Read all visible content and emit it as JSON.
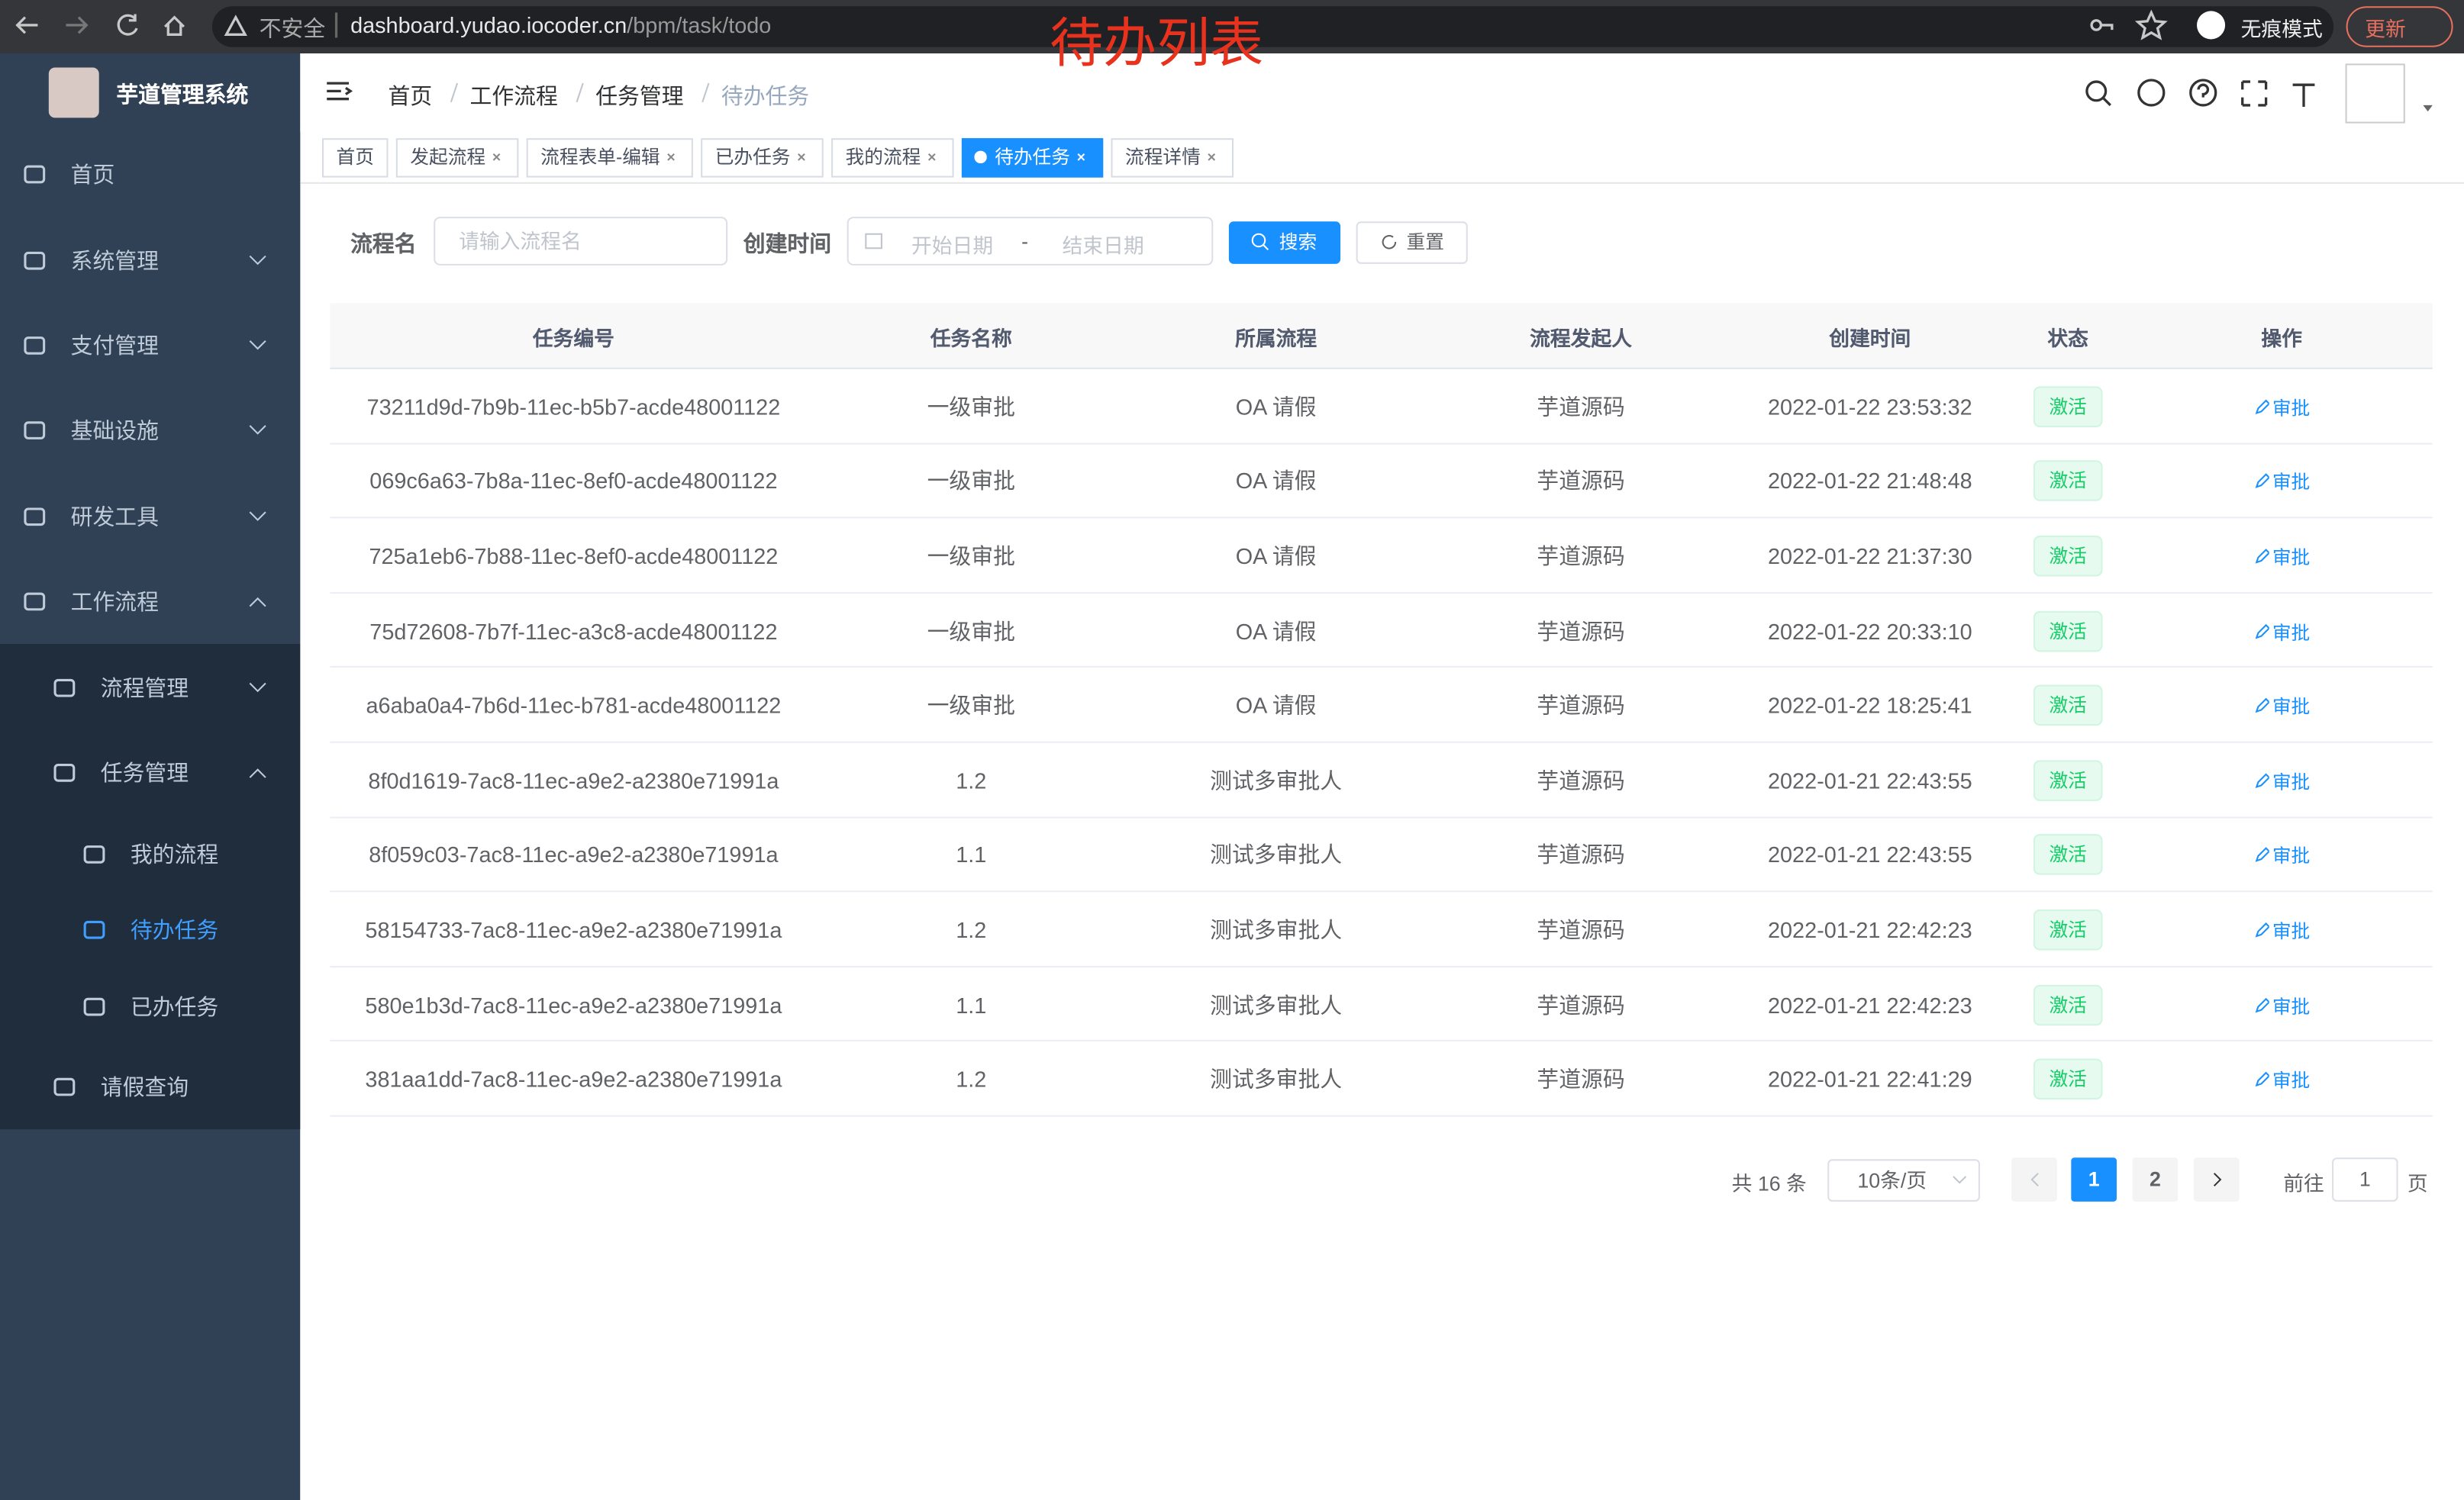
{
  "browser": {
    "security": "不安全",
    "url_host": "dashboard.yudao.iocoder.cn",
    "url_path": "/bpm/task/todo",
    "incognito": "无痕模式",
    "update": "更新"
  },
  "annotation": "待办列表",
  "sidebar": {
    "title": "芋道管理系统",
    "menu": [
      {
        "label": "首页"
      },
      {
        "label": "系统管理"
      },
      {
        "label": "支付管理"
      },
      {
        "label": "基础设施"
      },
      {
        "label": "研发工具"
      },
      {
        "label": "工作流程",
        "children": [
          {
            "label": "流程管理"
          },
          {
            "label": "任务管理",
            "children": [
              {
                "label": "我的流程"
              },
              {
                "label": "待办任务",
                "active": true
              },
              {
                "label": "已办任务"
              }
            ]
          },
          {
            "label": "请假查询"
          }
        ]
      }
    ]
  },
  "breadcrumb": [
    "首页",
    "工作流程",
    "任务管理",
    "待办任务"
  ],
  "tags": [
    {
      "label": "首页"
    },
    {
      "label": "发起流程"
    },
    {
      "label": "流程表单-编辑"
    },
    {
      "label": "已办任务"
    },
    {
      "label": "我的流程"
    },
    {
      "label": "待办任务",
      "active": true
    },
    {
      "label": "流程详情"
    }
  ],
  "search": {
    "name_label": "流程名",
    "name_placeholder": "请输入流程名",
    "time_label": "创建时间",
    "start_placeholder": "开始日期",
    "separator": "-",
    "end_placeholder": "结束日期",
    "search_button": "搜索",
    "reset_button": "重置"
  },
  "table": {
    "columns": [
      "任务编号",
      "任务名称",
      "所属流程",
      "流程发起人",
      "创建时间",
      "状态",
      "操作"
    ],
    "rows": [
      [
        "73211d9d-7b9b-11ec-b5b7-acde48001122",
        "一级审批",
        "OA 请假",
        "芋道源码",
        "2022-01-22 23:53:32",
        "激活",
        "审批"
      ],
      [
        "069c6a63-7b8a-11ec-8ef0-acde48001122",
        "一级审批",
        "OA 请假",
        "芋道源码",
        "2022-01-22 21:48:48",
        "激活",
        "审批"
      ],
      [
        "725a1eb6-7b88-11ec-8ef0-acde48001122",
        "一级审批",
        "OA 请假",
        "芋道源码",
        "2022-01-22 21:37:30",
        "激活",
        "审批"
      ],
      [
        "75d72608-7b7f-11ec-a3c8-acde48001122",
        "一级审批",
        "OA 请假",
        "芋道源码",
        "2022-01-22 20:33:10",
        "激活",
        "审批"
      ],
      [
        "a6aba0a4-7b6d-11ec-b781-acde48001122",
        "一级审批",
        "OA 请假",
        "芋道源码",
        "2022-01-22 18:25:41",
        "激活",
        "审批"
      ],
      [
        "8f0d1619-7ac8-11ec-a9e2-a2380e71991a",
        "1.2",
        "测试多审批人",
        "芋道源码",
        "2022-01-21 22:43:55",
        "激活",
        "审批"
      ],
      [
        "8f059c03-7ac8-11ec-a9e2-a2380e71991a",
        "1.1",
        "测试多审批人",
        "芋道源码",
        "2022-01-21 22:43:55",
        "激活",
        "审批"
      ],
      [
        "58154733-7ac8-11ec-a9e2-a2380e71991a",
        "1.2",
        "测试多审批人",
        "芋道源码",
        "2022-01-21 22:42:23",
        "激活",
        "审批"
      ],
      [
        "580e1b3d-7ac8-11ec-a9e2-a2380e71991a",
        "1.1",
        "测试多审批人",
        "芋道源码",
        "2022-01-21 22:42:23",
        "激活",
        "审批"
      ],
      [
        "381aa1dd-7ac8-11ec-a9e2-a2380e71991a",
        "1.2",
        "测试多审批人",
        "芋道源码",
        "2022-01-21 22:41:29",
        "激活",
        "审批"
      ]
    ]
  },
  "pagination": {
    "total": "共 16 条",
    "page_size": "10条/页",
    "pages": [
      {
        "label": "1",
        "active": true
      },
      {
        "label": "2"
      }
    ],
    "goto": "前往",
    "goto_value": "1",
    "page_unit": "页"
  }
}
